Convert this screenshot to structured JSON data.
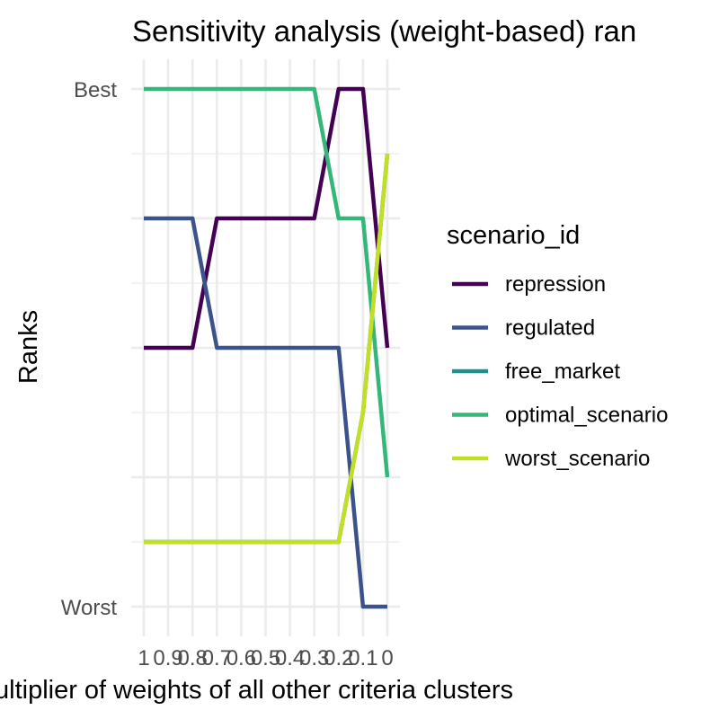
{
  "chart_data": {
    "type": "line",
    "title": "Sensitivity analysis (weight-based) ran",
    "xlabel": "ultiplier of weights of all other criteria clusters",
    "ylabel": "Ranks",
    "x": [
      1,
      0.9,
      0.8,
      0.7,
      0.6,
      0.5,
      0.4,
      0.3,
      0.2,
      0.1,
      0
    ],
    "x_tick_labels": [
      "1",
      "0.9",
      "0.8",
      "0.7",
      "0.6",
      "0.5",
      "0.4",
      "0.3",
      "0.2",
      "0.1",
      "0"
    ],
    "y_tick_labels": [
      "Best",
      "Worst"
    ],
    "ylim": [
      1,
      5
    ],
    "y_reversed": true,
    "grid": true,
    "legend_title": "scenario_id",
    "legend_position": "right",
    "series": [
      {
        "name": "repression",
        "color": "#440154",
        "values": [
          3,
          3,
          3,
          2,
          2,
          2,
          2,
          2,
          1,
          1,
          3
        ]
      },
      {
        "name": "regulated",
        "color": "#3b528b",
        "values": [
          2,
          2,
          2,
          3,
          3,
          3,
          3,
          3,
          3,
          5,
          5
        ]
      },
      {
        "name": "free_market",
        "color": "#21908c",
        "values": [
          4.5,
          4.5,
          4.5,
          4.5,
          4.5,
          4.5,
          4.5,
          4.5,
          4.5,
          3.5,
          1.5
        ]
      },
      {
        "name": "optimal_scenario",
        "color": "#35b779",
        "values": [
          1,
          1,
          1,
          1,
          1,
          1,
          1,
          1,
          2,
          2,
          4
        ]
      },
      {
        "name": "worst_scenario",
        "color": "#c2df23",
        "values": [
          4.5,
          4.5,
          4.5,
          4.5,
          4.5,
          4.5,
          4.5,
          4.5,
          4.5,
          3.5,
          1.5
        ]
      }
    ]
  }
}
